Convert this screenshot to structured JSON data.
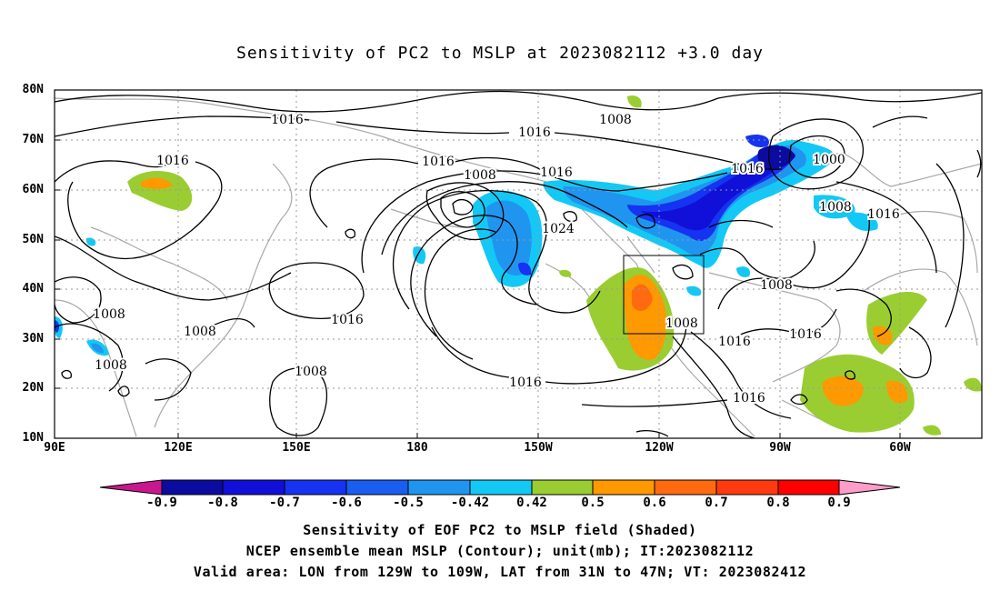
{
  "title": "Sensitivity of PC2 to MSLP at 2023082112 +3.0 day",
  "map": {
    "lat_ticks": [
      "80N",
      "70N",
      "60N",
      "50N",
      "40N",
      "30N",
      "20N",
      "10N"
    ],
    "lon_ticks": [
      "90E",
      "120E",
      "150E",
      "180",
      "150W",
      "120W",
      "90W",
      "60W"
    ],
    "valid_box": {
      "lon": [
        "129W",
        "109W"
      ],
      "lat": [
        "31N",
        "47N"
      ]
    },
    "contour_labels": [
      "1016",
      "1008",
      "1016",
      "1016",
      "1008",
      "1016",
      "1016",
      "1000",
      "1008",
      "1016",
      "1024",
      "1008",
      "1016",
      "1008",
      "1008",
      "1016",
      "1008",
      "1016",
      "1016",
      "1016",
      "1008",
      "1008",
      "1016"
    ]
  },
  "colorbar": {
    "ticks": [
      "-0.9",
      "-0.8",
      "-0.7",
      "-0.6",
      "-0.5",
      "-0.42",
      "0.42",
      "0.5",
      "0.6",
      "0.7",
      "0.8",
      "0.9"
    ],
    "colors": [
      "#0b0b9f",
      "#1010d8",
      "#1533f0",
      "#1a5ef0",
      "#1f95f0",
      "#14c8f5",
      "#ffffff",
      "#9acd32",
      "#ff9900",
      "#ff6a10",
      "#ff3a10",
      "#ff0000"
    ],
    "low_end_color": "#c8188f",
    "high_end_color": "#ff9cc8"
  },
  "footer": {
    "line1": "Sensitivity of EOF PC2 to MSLP field (Shaded)",
    "line2": "NCEP ensemble mean MSLP (Contour); unit(mb); IT:2023082112",
    "line3": "Valid area: LON from 129W to 109W, LAT from 31N to 47N; VT: 2023082412"
  }
}
